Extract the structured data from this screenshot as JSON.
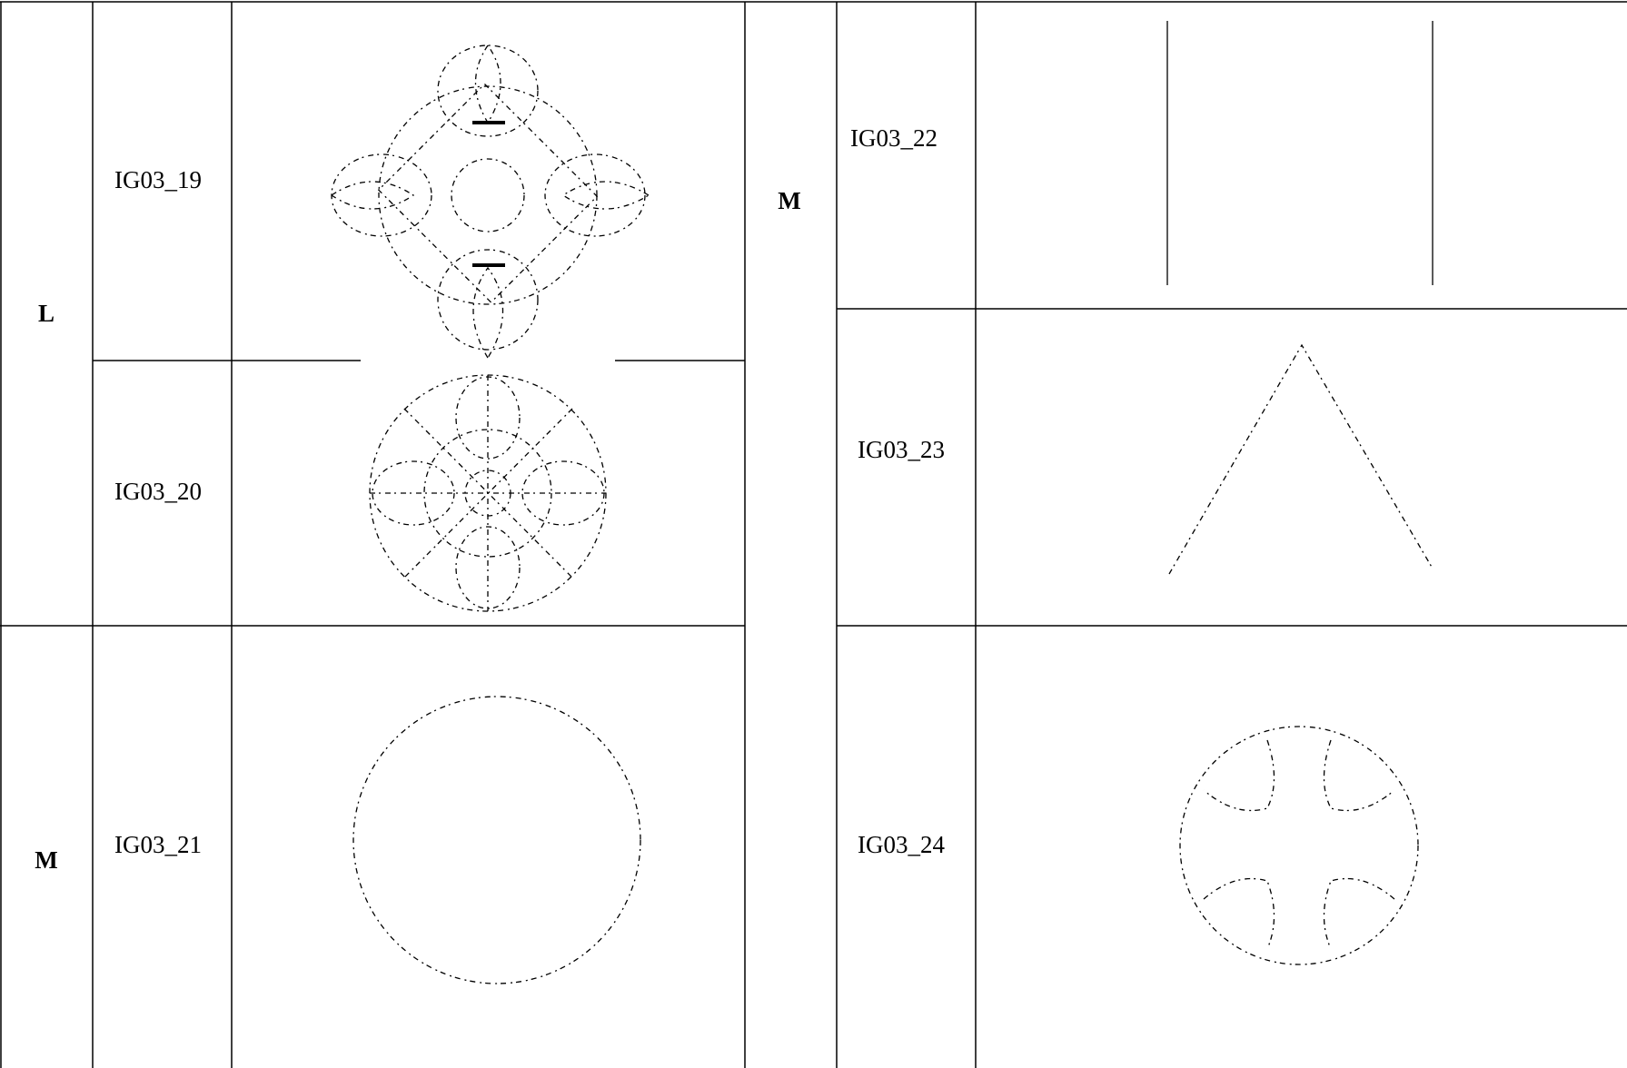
{
  "table": {
    "left": {
      "groups": [
        {
          "size": "L",
          "items": [
            "IG03_19",
            "IG03_20"
          ]
        },
        {
          "size": "M",
          "items": [
            "IG03_21"
          ]
        }
      ]
    },
    "right": {
      "groups": [
        {
          "size": "M",
          "items": [
            "IG03_22",
            "IG03_23",
            "IG03_24"
          ]
        }
      ]
    }
  }
}
